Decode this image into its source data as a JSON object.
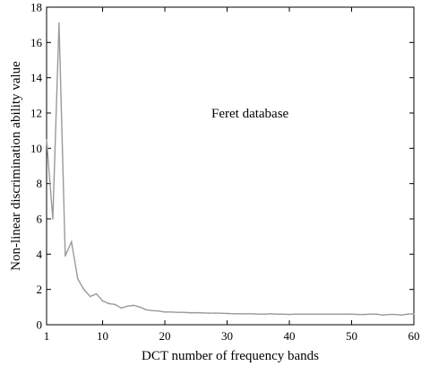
{
  "chart_data": {
    "type": "line",
    "title": "",
    "xlabel": "DCT number of frequency bands",
    "ylabel": "Non-linear discrimination ability value",
    "xlim": [
      1,
      60
    ],
    "ylim": [
      0,
      18
    ],
    "xticks": [
      "1",
      "10",
      "20",
      "30",
      "40",
      "50",
      "60"
    ],
    "yticks": [
      "0",
      "2",
      "4",
      "6",
      "8",
      "10",
      "12",
      "14",
      "16",
      "18"
    ],
    "grid": false,
    "legend": "none",
    "annotation": "Feret database",
    "series": [
      {
        "color": "#9a9a9a",
        "x": [
          1,
          2,
          3,
          4,
          5,
          6,
          7,
          8,
          9,
          10,
          11,
          12,
          13,
          14,
          15,
          16,
          17,
          18,
          19,
          20,
          21,
          22,
          23,
          24,
          25,
          26,
          27,
          28,
          29,
          30,
          31,
          32,
          33,
          34,
          35,
          36,
          37,
          38,
          39,
          40,
          41,
          42,
          43,
          44,
          45,
          46,
          47,
          48,
          49,
          50,
          51,
          52,
          53,
          54,
          55,
          56,
          57,
          58,
          59,
          60
        ],
        "y": [
          10.5,
          6.0,
          17.1,
          3.9,
          4.7,
          2.6,
          2.0,
          1.6,
          1.75,
          1.35,
          1.2,
          1.15,
          0.95,
          1.05,
          1.1,
          1.0,
          0.85,
          0.8,
          0.78,
          0.72,
          0.72,
          0.7,
          0.7,
          0.68,
          0.68,
          0.67,
          0.66,
          0.66,
          0.65,
          0.64,
          0.62,
          0.62,
          0.62,
          0.62,
          0.6,
          0.6,
          0.62,
          0.6,
          0.6,
          0.58,
          0.6,
          0.6,
          0.6,
          0.6,
          0.6,
          0.6,
          0.6,
          0.6,
          0.6,
          0.6,
          0.58,
          0.58,
          0.6,
          0.6,
          0.55,
          0.58,
          0.58,
          0.55,
          0.6,
          0.62
        ]
      }
    ]
  }
}
